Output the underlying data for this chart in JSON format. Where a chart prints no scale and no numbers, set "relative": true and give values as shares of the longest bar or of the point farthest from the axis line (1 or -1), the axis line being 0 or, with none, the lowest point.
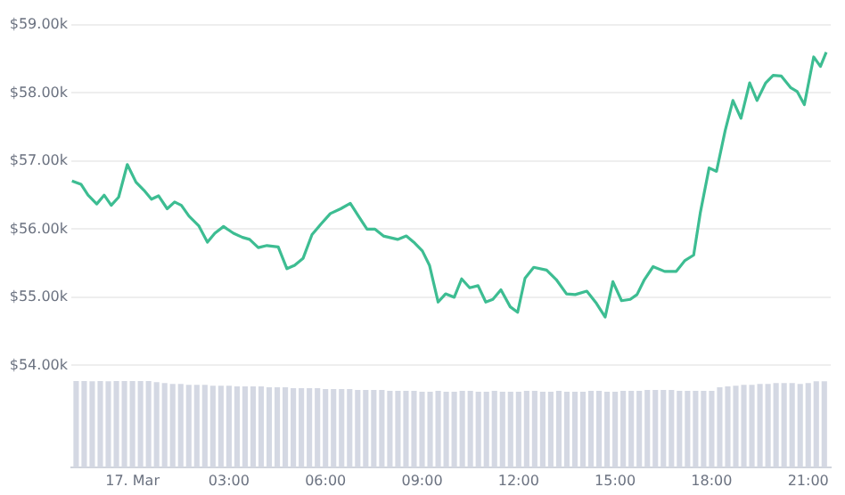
{
  "chart_data": [
    {
      "type": "line",
      "color": "#3dbd92",
      "marker": "none",
      "grid": "y",
      "tick_labels": "y",
      "x": [
        -1.88,
        -1.6,
        -1.38,
        -1.11,
        -0.88,
        -0.66,
        -0.43,
        -0.16,
        0.11,
        0.36,
        0.59,
        0.81,
        1.08,
        1.31,
        1.52,
        1.76,
        2.06,
        2.33,
        2.56,
        2.83,
        3.14,
        3.42,
        3.64,
        3.91,
        4.18,
        4.53,
        4.8,
        5.04,
        5.3,
        5.58,
        5.85,
        6.15,
        6.47,
        6.77,
        7.04,
        7.29,
        7.54,
        7.8,
        8.24,
        8.51,
        8.74,
        9.01,
        9.23,
        9.5,
        9.73,
        10.0,
        10.23,
        10.48,
        10.74,
        10.98,
        11.2,
        11.45,
        11.74,
        11.97,
        12.2,
        12.47,
        12.87,
        13.17,
        13.49,
        13.76,
        14.12,
        14.42,
        14.69,
        14.93,
        15.2,
        15.47,
        15.68,
        15.91,
        16.18,
        16.54,
        16.9,
        17.17,
        17.44,
        17.65,
        17.92,
        18.15,
        18.42,
        18.66,
        18.91,
        19.18,
        19.41,
        19.68,
        19.91,
        20.16,
        20.45,
        20.66,
        20.88,
        21.17,
        21.38,
        21.56
      ],
      "values": [
        56.71,
        56.66,
        56.5,
        56.37,
        56.5,
        56.35,
        56.47,
        56.95,
        56.69,
        56.57,
        56.44,
        56.49,
        56.3,
        56.4,
        56.35,
        56.19,
        56.05,
        55.81,
        55.94,
        56.04,
        55.94,
        55.88,
        55.85,
        55.73,
        55.76,
        55.74,
        55.42,
        55.47,
        55.57,
        55.92,
        56.07,
        56.23,
        56.3,
        56.38,
        56.18,
        56.0,
        56.0,
        55.9,
        55.85,
        55.9,
        55.81,
        55.68,
        55.47,
        54.93,
        55.05,
        55.0,
        55.27,
        55.14,
        55.17,
        54.93,
        54.97,
        55.11,
        54.86,
        54.78,
        55.28,
        55.44,
        55.4,
        55.26,
        55.05,
        55.04,
        55.09,
        54.91,
        54.71,
        55.23,
        54.95,
        54.97,
        55.04,
        55.26,
        55.45,
        55.38,
        55.38,
        55.54,
        55.62,
        56.25,
        56.9,
        56.85,
        57.45,
        57.89,
        57.63,
        58.15,
        57.89,
        58.15,
        58.26,
        58.25,
        58.08,
        58.02,
        57.83,
        58.53,
        58.39,
        58.6
      ],
      "xlim": [
        -1.9,
        21.7
      ],
      "ylim": [
        54,
        59
      ],
      "yticks": [
        {
          "value": 54,
          "label": "$54.00k"
        },
        {
          "value": 55,
          "label": "$55.00k"
        },
        {
          "value": 56,
          "label": "$56.00k"
        },
        {
          "value": 57,
          "label": "$57.00k"
        },
        {
          "value": 58,
          "label": "$58.00k"
        },
        {
          "value": 59,
          "label": "$59.00k"
        }
      ]
    },
    {
      "type": "bar",
      "color": "#d4d8e3",
      "relative": true,
      "tick_labels": "x",
      "x": [
        -1.75,
        -1.5,
        -1.25,
        -1,
        -0.75,
        -0.5,
        -0.25,
        0,
        0.25,
        0.5,
        0.75,
        1,
        1.25,
        1.5,
        1.75,
        2,
        2.25,
        2.5,
        2.75,
        3,
        3.25,
        3.5,
        3.75,
        4,
        4.25,
        4.5,
        4.75,
        5,
        5.25,
        5.5,
        5.75,
        6,
        6.25,
        6.5,
        6.75,
        7,
        7.25,
        7.5,
        7.75,
        8,
        8.25,
        8.5,
        8.75,
        9,
        9.25,
        9.5,
        9.75,
        10,
        10.25,
        10.5,
        10.75,
        11,
        11.25,
        11.5,
        11.75,
        12,
        12.25,
        12.5,
        12.75,
        13,
        13.25,
        13.5,
        13.75,
        14,
        14.25,
        14.5,
        14.75,
        15,
        15.25,
        15.5,
        15.75,
        16,
        16.25,
        16.5,
        16.75,
        17,
        17.25,
        17.5,
        17.75,
        18,
        18.25,
        18.5,
        18.75,
        19,
        19.25,
        19.5,
        19.75,
        20,
        20.25,
        20.5,
        20.75,
        21,
        21.25,
        21.5
      ],
      "values": [
        1,
        1,
        0.99,
        1,
        0.99,
        1,
        1,
        1,
        1,
        1,
        0.98,
        0.97,
        0.96,
        0.96,
        0.95,
        0.95,
        0.95,
        0.94,
        0.94,
        0.94,
        0.93,
        0.93,
        0.93,
        0.93,
        0.92,
        0.92,
        0.92,
        0.91,
        0.91,
        0.91,
        0.91,
        0.9,
        0.9,
        0.9,
        0.9,
        0.89,
        0.89,
        0.89,
        0.89,
        0.88,
        0.88,
        0.88,
        0.88,
        0.87,
        0.87,
        0.88,
        0.87,
        0.87,
        0.88,
        0.88,
        0.87,
        0.87,
        0.88,
        0.87,
        0.87,
        0.87,
        0.88,
        0.88,
        0.87,
        0.87,
        0.88,
        0.87,
        0.87,
        0.87,
        0.88,
        0.88,
        0.87,
        0.87,
        0.88,
        0.88,
        0.88,
        0.89,
        0.89,
        0.89,
        0.89,
        0.88,
        0.88,
        0.88,
        0.88,
        0.88,
        0.92,
        0.93,
        0.94,
        0.95,
        0.95,
        0.96,
        0.96,
        0.97,
        0.97,
        0.97,
        0.96,
        0.97,
        0.99,
        0.99
      ],
      "xlim": [
        -1.9,
        21.7
      ],
      "xticks": [
        {
          "value": 0,
          "label": "17. Mar"
        },
        {
          "value": 3,
          "label": "03:00"
        },
        {
          "value": 6,
          "label": "06:00"
        },
        {
          "value": 9,
          "label": "09:00"
        },
        {
          "value": 12,
          "label": "12:00"
        },
        {
          "value": 15,
          "label": "15:00"
        },
        {
          "value": 18,
          "label": "18:00"
        },
        {
          "value": 21,
          "label": "21:00"
        }
      ]
    }
  ]
}
